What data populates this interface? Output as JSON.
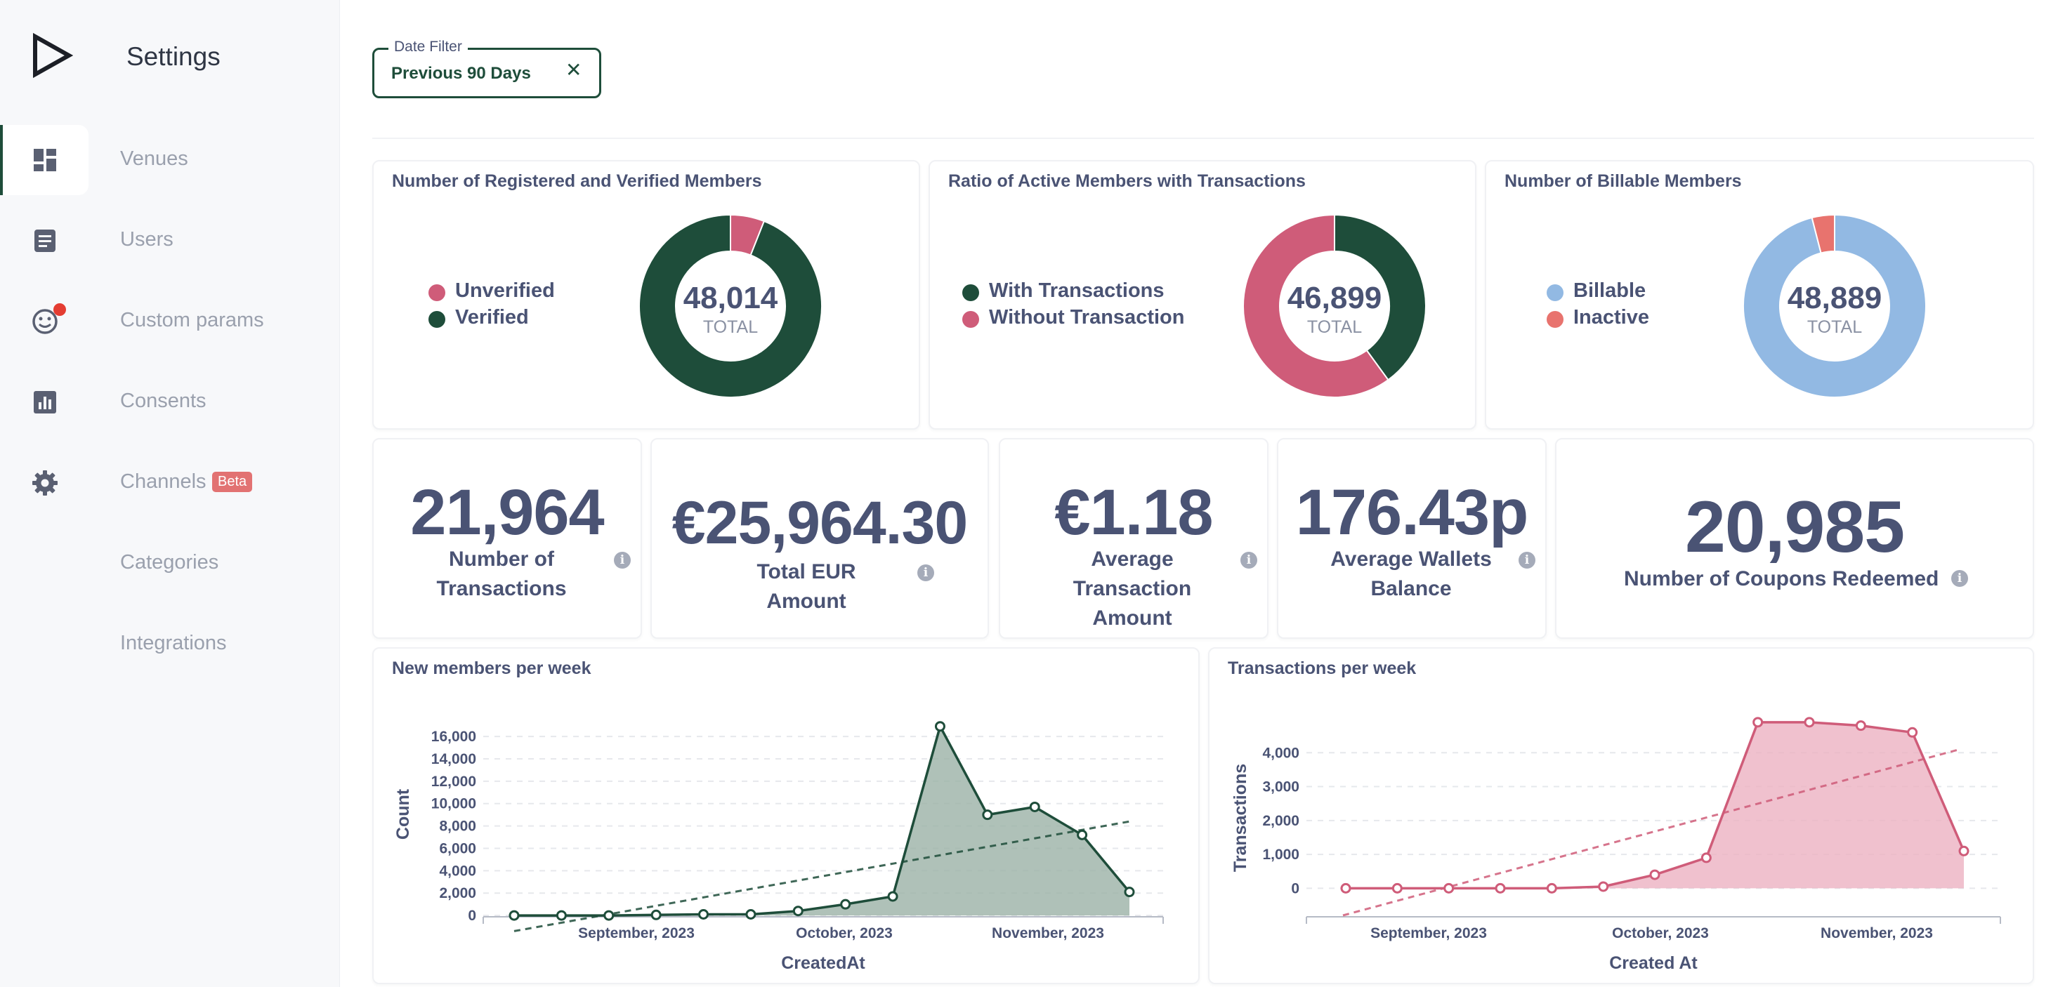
{
  "sidebar": {
    "title": "Settings",
    "items": [
      {
        "label": "Venues",
        "icon": "dashboard-icon",
        "active": true
      },
      {
        "label": "Users",
        "icon": "document-icon"
      },
      {
        "label": "Custom params",
        "icon": "smiley-icon",
        "notification": true
      },
      {
        "label": "Consents",
        "icon": "bar-chart-icon"
      },
      {
        "label": "Channels",
        "icon": "gear-icon",
        "badge": "Beta"
      },
      {
        "label": "Categories",
        "icon": ""
      },
      {
        "label": "Integrations",
        "icon": ""
      }
    ]
  },
  "date_filter": {
    "legend": "Date Filter",
    "value": "Previous 90 Days",
    "clear_icon": "close-icon"
  },
  "donuts": [
    {
      "title": "Number of Registered and Verified Members",
      "total": "48,014",
      "caption": "TOTAL",
      "legend": [
        {
          "label": "Unverified",
          "color": "#cf5c79"
        },
        {
          "label": "Verified",
          "color": "#1e4d3a"
        }
      ],
      "slices": [
        {
          "label": "Unverified",
          "fraction": 0.06
        },
        {
          "label": "Verified",
          "fraction": 0.94
        }
      ]
    },
    {
      "title": "Ratio of Active Members with Transactions",
      "total": "46,899",
      "caption": "TOTAL",
      "legend": [
        {
          "label": "With Transactions",
          "color": "#1e4d3a"
        },
        {
          "label": "Without Transaction",
          "color": "#cf5c79"
        }
      ],
      "slices": [
        {
          "label": "With Transactions",
          "fraction": 0.4
        },
        {
          "label": "Without Transaction",
          "fraction": 0.6
        }
      ]
    },
    {
      "title": "Number of Billable Members",
      "total": "48,889",
      "caption": "TOTAL",
      "legend": [
        {
          "label": "Billable",
          "color": "#92b9e3"
        },
        {
          "label": "Inactive",
          "color": "#e8736e"
        }
      ],
      "slices": [
        {
          "label": "Billable",
          "fraction": 0.96
        },
        {
          "label": "Inactive",
          "fraction": 0.04
        }
      ]
    }
  ],
  "metrics": [
    {
      "value": "21,964",
      "label": "Number of Transactions"
    },
    {
      "value": "€25,964.30",
      "label": "Total EUR Amount"
    },
    {
      "value": "€1.18",
      "label": "Average Transaction Amount"
    },
    {
      "value": "176.43p",
      "label": "Average Wallets Balance"
    },
    {
      "value": "20,985",
      "label": "Number of Coupons Redeemed"
    }
  ],
  "chart_data": [
    {
      "type": "area",
      "title": "New members per week",
      "xlabel": "CreatedAt",
      "ylabel": "Count",
      "x_tick_labels": [
        "September, 2023",
        "October, 2023",
        "November, 2023"
      ],
      "y_ticks": [
        0,
        2000,
        4000,
        6000,
        8000,
        10000,
        12000,
        14000,
        16000
      ],
      "y_tick_labels": [
        "0",
        "2,000",
        "4,000",
        "6,000",
        "8,000",
        "10,000",
        "12,000",
        "14,000",
        "16,000"
      ],
      "ylim": [
        -1500,
        18200
      ],
      "color": "#1e4d3a",
      "fill": "#9bb1a6",
      "series": [
        {
          "values": [
            0,
            0,
            0,
            50,
            100,
            100,
            400,
            1000,
            1700,
            16900,
            9000,
            9700,
            7200,
            2100
          ]
        }
      ],
      "trendline": {
        "start": -1400,
        "end": 8400
      },
      "grid": true
    },
    {
      "type": "area",
      "title": "Transactions per week",
      "xlabel": "Created At",
      "ylabel": "Transactions",
      "x_tick_labels": [
        "September, 2023",
        "October, 2023",
        "November, 2023"
      ],
      "y_ticks": [
        0,
        1000,
        2000,
        3000,
        4000
      ],
      "y_tick_labels": [
        "0",
        "1,000",
        "2,000",
        "3,000",
        "4,000"
      ],
      "ylim": [
        -800,
        5000
      ],
      "color": "#cf5c79",
      "fill": "#ecb2c2",
      "series": [
        {
          "values": [
            0,
            0,
            0,
            0,
            0,
            50,
            400,
            900,
            4900,
            4900,
            4800,
            4600,
            1100
          ]
        }
      ],
      "trendline": {
        "start": -800,
        "end": 4100
      },
      "grid": true
    }
  ]
}
